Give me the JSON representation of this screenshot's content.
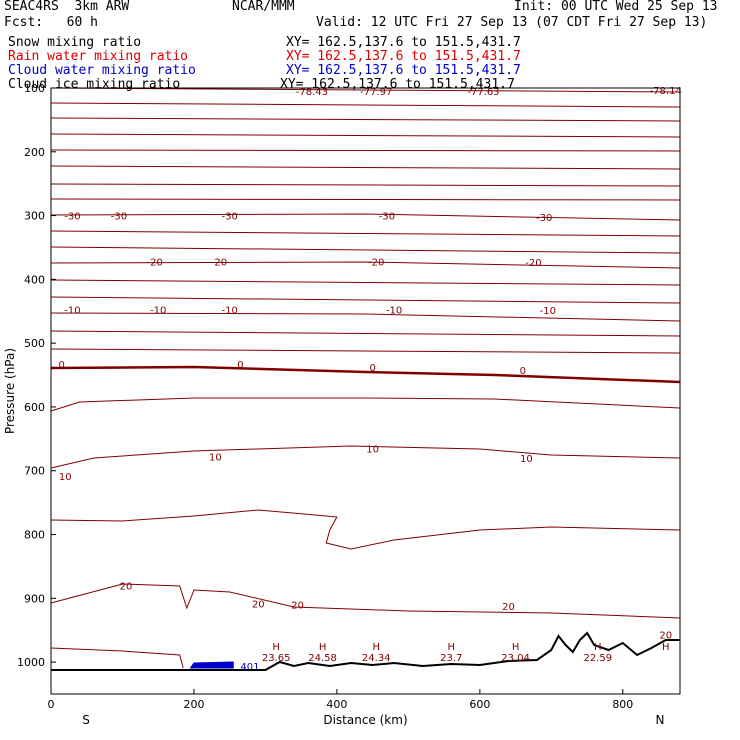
{
  "header": {
    "model": "SEAC4RS  3km ARW",
    "org": "NCAR/MMM",
    "init": "Init: 00 UTC Wed 25 Sep 13",
    "fcst": "Fcst:   60 h",
    "valid": "Valid: 12 UTC Fri 27 Sep 13 (07 CDT Fri 27 Sep 13)"
  },
  "fields": [
    {
      "label": "Snow mixing ratio",
      "xy": "XY= 162.5,137.6 to 151.5,431.7",
      "color": "#000000"
    },
    {
      "label": "Rain water mixing ratio",
      "xy": "XY= 162.5,137.6 to 151.5,431.7",
      "color": "#dd0000"
    },
    {
      "label": "Cloud water mixing ratio",
      "xy": "XY= 162.5,137.6 to 151.5,431.7",
      "color": "#0000cc"
    },
    {
      "label": "Cloud ice mixing ratio",
      "xy": "XY= 162.5,137.6 to 151.5,431.7",
      "color": "#000000"
    }
  ],
  "chart_data": {
    "type": "cross-section contour",
    "xlabel": "Distance (km)",
    "ylabel": "Pressure (hPa)",
    "xlim": [
      0,
      880
    ],
    "ylim": [
      1050,
      100
    ],
    "x_ticks": [
      "0",
      "200",
      "400",
      "600",
      "800"
    ],
    "y_ticks": [
      "100",
      "200",
      "300",
      "400",
      "500",
      "600",
      "700",
      "800",
      "900",
      "1000"
    ],
    "x_end_labels": [
      "S",
      "N"
    ],
    "contour_color": "#800000",
    "temperature_labels": [
      {
        "text": "-78.43",
        "x": 365,
        "p": 105
      },
      {
        "text": "-77.97",
        "x": 455,
        "p": 105
      },
      {
        "text": "-77.63",
        "x": 605,
        "p": 105
      },
      {
        "text": "-78.14",
        "x": 860,
        "p": 103
      },
      {
        "text": "-30",
        "x": 30,
        "p": 300
      },
      {
        "text": "-30",
        "x": 95,
        "p": 300
      },
      {
        "text": "-30",
        "x": 250,
        "p": 300
      },
      {
        "text": "-30",
        "x": 470,
        "p": 300
      },
      {
        "text": "-30",
        "x": 690,
        "p": 302
      },
      {
        "text": "-20",
        "x": 145,
        "p": 372
      },
      {
        "text": "-20",
        "x": 235,
        "p": 372
      },
      {
        "text": "-20",
        "x": 455,
        "p": 372
      },
      {
        "text": "-20",
        "x": 675,
        "p": 373
      },
      {
        "text": "-10",
        "x": 30,
        "p": 447
      },
      {
        "text": "-10",
        "x": 150,
        "p": 447
      },
      {
        "text": "-10",
        "x": 250,
        "p": 447
      },
      {
        "text": "-10",
        "x": 480,
        "p": 447
      },
      {
        "text": "-10",
        "x": 695,
        "p": 448
      },
      {
        "text": "0",
        "x": 15,
        "p": 533
      },
      {
        "text": "0",
        "x": 265,
        "p": 533
      },
      {
        "text": "0",
        "x": 450,
        "p": 537
      },
      {
        "text": "0",
        "x": 660,
        "p": 542
      },
      {
        "text": "10",
        "x": 20,
        "p": 708
      },
      {
        "text": "10",
        "x": 230,
        "p": 678
      },
      {
        "text": "10",
        "x": 450,
        "p": 665
      },
      {
        "text": "10",
        "x": 665,
        "p": 680
      },
      {
        "text": "20",
        "x": 105,
        "p": 880
      },
      {
        "text": "20",
        "x": 290,
        "p": 908
      },
      {
        "text": "20",
        "x": 345,
        "p": 910
      },
      {
        "text": "20",
        "x": 640,
        "p": 912
      },
      {
        "text": "20",
        "x": 860,
        "p": 957
      }
    ],
    "high_markers": [
      {
        "x": 315,
        "value": "23.65"
      },
      {
        "x": 380,
        "value": "24.58"
      },
      {
        "x": 455,
        "value": "24.34"
      },
      {
        "x": 560,
        "value": "23.7"
      },
      {
        "x": 650,
        "value": "23.04"
      },
      {
        "x": 765,
        "value": "22.59"
      },
      {
        "x": 860,
        "value": ""
      }
    ],
    "blue_label": "401"
  }
}
